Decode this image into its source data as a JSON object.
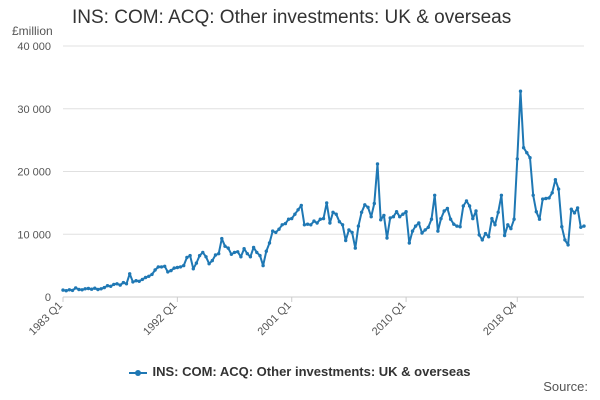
{
  "chart_data": {
    "type": "line",
    "title": "INS: COM: ACQ: Other investments: UK & overseas",
    "y_unit_label": "£million",
    "source_label": "Source:",
    "legend_position": "bottom",
    "grid": true,
    "ylim": [
      0,
      40000
    ],
    "y_ticks": [
      0,
      10000,
      20000,
      30000,
      40000
    ],
    "y_tick_labels": [
      "0",
      "10 000",
      "20 000",
      "30 000",
      "40 000"
    ],
    "x_tick_labels": [
      "1983 Q1",
      "1992 Q1",
      "2001 Q1",
      "2010 Q1",
      "2018 Q4"
    ],
    "x_tick_quarters": [
      "1983 Q1",
      "1992 Q1",
      "2001 Q1",
      "2010 Q1",
      "2018 Q4"
    ],
    "colors": {
      "series": "#1f78b4",
      "grid": "#e0e0e0",
      "axis": "#cccccc"
    },
    "series": [
      {
        "name": "INS: COM: ACQ: Other investments: UK & overseas",
        "x_start": "1983 Q1",
        "frequency": "quarterly",
        "values": [
          1100,
          1000,
          1150,
          1050,
          1450,
          1200,
          1150,
          1300,
          1350,
          1250,
          1400,
          1200,
          1300,
          1500,
          1800,
          1700,
          2000,
          2100,
          1900,
          2300,
          2100,
          3700,
          2400,
          2600,
          2500,
          2800,
          3100,
          3300,
          3600,
          4300,
          4800,
          4800,
          4900,
          4000,
          4200,
          4600,
          4700,
          4800,
          5000,
          6300,
          6600,
          4500,
          5400,
          6600,
          7100,
          6400,
          5300,
          5800,
          6700,
          6900,
          9300,
          8100,
          7800,
          6800,
          7100,
          7200,
          6400,
          7700,
          6900,
          6400,
          7900,
          7100,
          6600,
          5000,
          7300,
          8600,
          10500,
          10300,
          10800,
          11500,
          11700,
          12400,
          12500,
          13200,
          13900,
          14600,
          11500,
          11600,
          11500,
          12100,
          11800,
          12400,
          12500,
          15000,
          11800,
          13500,
          13200,
          12000,
          11500,
          9000,
          10700,
          10300,
          7800,
          11300,
          13500,
          14700,
          14300,
          12800,
          14900,
          21200,
          12300,
          13000,
          9400,
          12600,
          12800,
          13600,
          12800,
          13200,
          13600,
          8600,
          10500,
          11300,
          11800,
          10200,
          10700,
          11100,
          12400,
          16200,
          10500,
          12500,
          13700,
          14100,
          12400,
          11600,
          11300,
          11200,
          14500,
          15300,
          14500,
          12500,
          13700,
          9900,
          9100,
          10100,
          9600,
          12500,
          11500,
          13500,
          16200,
          9800,
          11500,
          10900,
          12400,
          22000,
          32800,
          23800,
          23000,
          22200,
          16200,
          13600,
          12400,
          15600,
          15700,
          15800,
          16600,
          18700,
          17200,
          11200,
          9100,
          8300,
          14000,
          13400,
          14200,
          11100,
          11300
        ]
      }
    ]
  }
}
